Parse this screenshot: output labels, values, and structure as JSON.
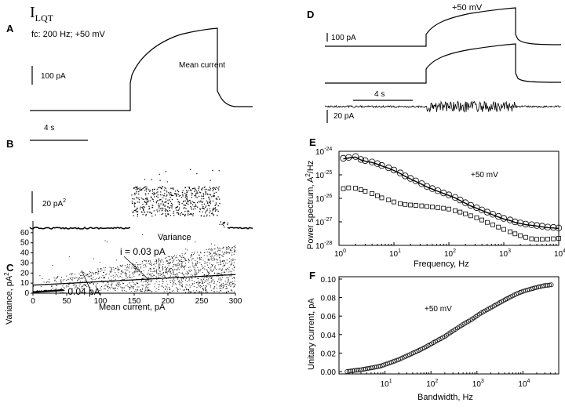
{
  "figure": {
    "title_main": "I",
    "title_sub": "LQT",
    "condition": "fc: 200 Hz; +50 mV"
  },
  "chart_data": [
    {
      "panel": "A",
      "type": "line",
      "description_label": "Mean current",
      "scale_bar_y": "100 pA",
      "scale_bar_x": "4 s",
      "series": [
        {
          "name": "mean current",
          "t_s": [
            0,
            8.3,
            8.4,
            9,
            10,
            12,
            14,
            16,
            18,
            19.5,
            19.6,
            20.0,
            20.5,
            21,
            25
          ],
          "i_pA": [
            0,
            0,
            110,
            165,
            200,
            240,
            265,
            280,
            290,
            295,
            20,
            55,
            15,
            3,
            0
          ]
        }
      ]
    },
    {
      "panel": "B",
      "type": "scatter",
      "description_label": "Variance",
      "scale_bar_y_value": "20 pA",
      "scale_bar_y_exp": "2"
    },
    {
      "panel": "C",
      "type": "scatter",
      "xlabel": "Mean current, pA",
      "ylabel": "Variance, pA",
      "ylabel_exp": "2",
      "xlim": [
        0,
        300
      ],
      "ylim": [
        0,
        70
      ],
      "xticks": [
        0,
        50,
        100,
        150,
        200,
        250,
        300
      ],
      "yticks": [
        0,
        10,
        20,
        30,
        40,
        50,
        60
      ],
      "fits": [
        {
          "label": "i = 0.04 pA",
          "x": [
            0,
            45
          ],
          "y": [
            1.0,
            3.0
          ]
        },
        {
          "label": "i = 0.03 pA",
          "x": [
            0,
            300
          ],
          "y": [
            8.0,
            18.5
          ]
        }
      ]
    },
    {
      "panel": "D",
      "type": "line",
      "voltage_label": "+50 mV",
      "scale_bar_current": "100 pA",
      "scale_bar_time": "4 s",
      "scale_bar_noise": "20 pA"
    },
    {
      "panel": "E",
      "type": "scatter",
      "xlabel": "Frequency, Hz",
      "ylabel": "Power spectrum, A",
      "ylabel_exp": "2",
      "ylabel_tail": "/Hz",
      "annotation": "+50 mV",
      "xscale": "log",
      "yscale": "log",
      "xlim": [
        1,
        10000
      ],
      "ylim": [
        1e-28,
        1e-24
      ],
      "xtick_base": "10",
      "xtick_exps": [
        "0",
        "1",
        "2",
        "3",
        "4"
      ],
      "ytick_base": "10",
      "ytick_exps": [
        "-24",
        "-25",
        "-26",
        "-27",
        "-28"
      ],
      "series": [
        {
          "name": "circles",
          "freq": [
            1.2,
            1.5,
            2,
            2.5,
            3,
            4,
            5,
            6,
            8,
            10,
            13,
            16,
            20,
            25,
            32,
            40,
            50,
            63,
            80,
            100,
            130,
            160,
            200,
            250,
            320,
            400,
            500,
            630,
            800,
            1000,
            1300,
            1600,
            2000,
            2500,
            3200,
            4000,
            5000,
            6300,
            8000,
            10000
          ],
          "power": [
            5e-25,
            5.5e-25,
            6e-25,
            4.5e-25,
            4e-25,
            3.5e-25,
            3e-25,
            2.5e-25,
            2e-25,
            1.6e-25,
            1.2e-25,
            9e-26,
            7e-26,
            5.5e-26,
            4.2e-26,
            3.2e-26,
            2.6e-26,
            2.1e-26,
            1.7e-26,
            1.4e-26,
            1.1e-26,
            8.5e-27,
            6.5e-27,
            5e-27,
            4e-27,
            3.2e-27,
            2.6e-27,
            2.1e-27,
            1.7e-27,
            1.4e-27,
            1.2e-27,
            1e-27,
            9e-28,
            8e-28,
            7.5e-28,
            7e-28,
            6.5e-28,
            6e-28,
            5.8e-28,
            5.5e-28
          ]
        },
        {
          "name": "squares",
          "freq": [
            1.2,
            1.5,
            2,
            2.5,
            3,
            4,
            5,
            6,
            8,
            10,
            13,
            16,
            20,
            25,
            32,
            40,
            50,
            63,
            80,
            100,
            130,
            160,
            200,
            250,
            320,
            400,
            500,
            630,
            800,
            1000,
            1300,
            1600,
            2000,
            2500,
            3200,
            4000,
            5000,
            6300,
            8000,
            10000
          ],
          "power": [
            2.6e-26,
            2.8e-26,
            2.7e-26,
            2.3e-26,
            2e-26,
            1.6e-26,
            1.3e-26,
            1.05e-26,
            8.5e-27,
            7e-27,
            6e-27,
            5.5e-27,
            5.2e-27,
            5e-27,
            4.8e-27,
            4.5e-27,
            4.3e-27,
            4e-27,
            3.8e-27,
            3.5e-27,
            3e-27,
            2.6e-27,
            2.2e-27,
            1.8e-27,
            1.5e-27,
            1.2e-27,
            9.5e-28,
            7.5e-28,
            6e-28,
            4.8e-28,
            3.8e-28,
            3.1e-28,
            2.6e-28,
            2.2e-28,
            1.9e-28,
            1.8e-28,
            1.8e-28,
            1.85e-28,
            1.9e-28,
            2e-28
          ]
        }
      ]
    },
    {
      "panel": "F",
      "type": "scatter",
      "xlabel": "Bandwidth, Hz",
      "ylabel": "Unitary current, pA",
      "annotation": "+50 mV",
      "xscale": "log",
      "xlim": [
        1,
        60000
      ],
      "ylim": [
        0,
        0.1
      ],
      "yticks": [
        "0.00",
        "0.02",
        "0.04",
        "0.06",
        "0.08",
        "0.10"
      ],
      "xtick_base": "10",
      "xtick_exps": [
        "1",
        "2",
        "3",
        "4"
      ],
      "series": [
        {
          "name": "unitary current vs bandwidth",
          "bandwidth": [
            1.5,
            2,
            3,
            5,
            8,
            12,
            20,
            30,
            50,
            80,
            120,
            200,
            300,
            500,
            800,
            1200,
            2000,
            3000,
            5000,
            8000,
            12000,
            20000,
            30000,
            45000
          ],
          "current_pA": [
            0.0,
            0.001,
            0.002,
            0.004,
            0.006,
            0.009,
            0.013,
            0.017,
            0.022,
            0.027,
            0.032,
            0.038,
            0.044,
            0.051,
            0.057,
            0.063,
            0.069,
            0.074,
            0.08,
            0.085,
            0.088,
            0.091,
            0.093,
            0.094
          ]
        }
      ]
    }
  ]
}
